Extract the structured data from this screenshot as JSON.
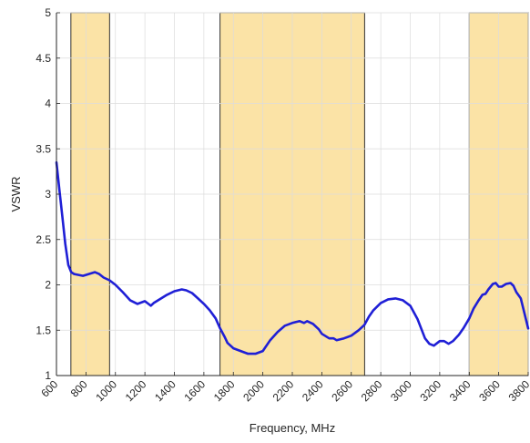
{
  "chart_data": {
    "type": "line",
    "xlabel": "Frequency, MHz",
    "ylabel": "VSWR",
    "xlim": [
      600,
      3800
    ],
    "ylim": [
      1,
      5
    ],
    "xticks": [
      600,
      800,
      1000,
      1200,
      1400,
      1600,
      1800,
      2000,
      2200,
      2400,
      2600,
      2800,
      3000,
      3200,
      3400,
      3600,
      3800
    ],
    "yticks": [
      1,
      1.5,
      2,
      2.5,
      3,
      3.5,
      4,
      4.5,
      5
    ],
    "ytick_labels": [
      "1",
      "1.5",
      "2",
      "2.5",
      "3",
      "3.5",
      "4",
      "4.5",
      "5"
    ],
    "grid": true,
    "highlight_bands": [
      {
        "from": 698,
        "to": 960
      },
      {
        "from": 1710,
        "to": 2690
      },
      {
        "from": 3400,
        "to": 3800
      }
    ],
    "band_fill_color": "#fbe3a6",
    "band_edge_color": "#000000",
    "line_color": "#1f1fd6",
    "series": [
      {
        "x": [
          600,
          620,
          640,
          660,
          680,
          700,
          720,
          750,
          780,
          820,
          860,
          890,
          920,
          960,
          1000,
          1050,
          1100,
          1150,
          1200,
          1240,
          1260,
          1300,
          1350,
          1400,
          1450,
          1480,
          1520,
          1560,
          1600,
          1640,
          1680,
          1710,
          1740,
          1760,
          1800,
          1850,
          1900,
          1950,
          2000,
          2050,
          2100,
          2150,
          2200,
          2250,
          2280,
          2300,
          2340,
          2380,
          2400,
          2450,
          2480,
          2500,
          2550,
          2600,
          2650,
          2690,
          2720,
          2750,
          2800,
          2850,
          2900,
          2950,
          3000,
          3050,
          3100,
          3130,
          3160,
          3200,
          3230,
          3260,
          3290,
          3330,
          3360,
          3400,
          3430,
          3460,
          3490,
          3510,
          3530,
          3560,
          3580,
          3600,
          3620,
          3650,
          3680,
          3700,
          3720,
          3750,
          3780,
          3800
        ],
        "y": [
          3.35,
          3.05,
          2.75,
          2.45,
          2.22,
          2.14,
          2.12,
          2.11,
          2.1,
          2.12,
          2.14,
          2.12,
          2.08,
          2.05,
          2.0,
          1.92,
          1.83,
          1.79,
          1.82,
          1.77,
          1.8,
          1.84,
          1.89,
          1.93,
          1.95,
          1.94,
          1.91,
          1.85,
          1.79,
          1.72,
          1.63,
          1.52,
          1.43,
          1.36,
          1.3,
          1.27,
          1.24,
          1.24,
          1.27,
          1.39,
          1.48,
          1.55,
          1.58,
          1.6,
          1.58,
          1.6,
          1.57,
          1.51,
          1.46,
          1.41,
          1.41,
          1.39,
          1.41,
          1.44,
          1.5,
          1.56,
          1.65,
          1.72,
          1.8,
          1.84,
          1.85,
          1.83,
          1.77,
          1.62,
          1.41,
          1.35,
          1.33,
          1.38,
          1.38,
          1.35,
          1.38,
          1.45,
          1.52,
          1.63,
          1.74,
          1.82,
          1.89,
          1.9,
          1.95,
          2.01,
          2.02,
          1.98,
          1.98,
          2.01,
          2.02,
          1.99,
          1.92,
          1.85,
          1.65,
          1.52
        ]
      }
    ]
  }
}
